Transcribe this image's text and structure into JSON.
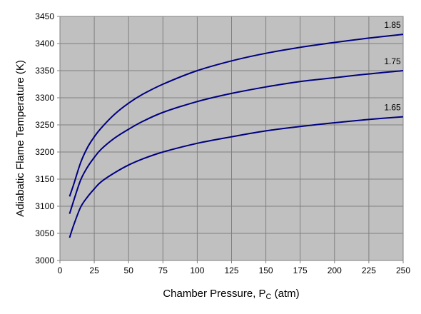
{
  "chart_data": {
    "type": "line",
    "title": "",
    "xlabel_main": "Chamber Pressure, P",
    "xlabel_sub": "C",
    "xlabel_unit": " (atm)",
    "ylabel": "Adiabatic Flame Temperature (K)",
    "xlim": [
      0,
      250
    ],
    "ylim": [
      3000,
      3450
    ],
    "x_ticks": [
      "0",
      "25",
      "50",
      "75",
      "100",
      "125",
      "150",
      "175",
      "200",
      "225",
      "250"
    ],
    "y_ticks": [
      "3000",
      "3050",
      "3100",
      "3150",
      "3200",
      "3250",
      "3300",
      "3350",
      "3400",
      "3450"
    ],
    "grid": true,
    "legend": "none",
    "plot_background": "#c0c0c0",
    "line_color": "#000080",
    "x": [
      7,
      10,
      15,
      20,
      25,
      30,
      40,
      50,
      60,
      75,
      100,
      125,
      150,
      175,
      200,
      225,
      250
    ],
    "series": [
      {
        "name": "1.85",
        "values": [
          3118,
          3140,
          3180,
          3208,
          3228,
          3244,
          3270,
          3290,
          3306,
          3325,
          3350,
          3368,
          3382,
          3393,
          3402,
          3410,
          3417
        ]
      },
      {
        "name": "1.75",
        "values": [
          3086,
          3110,
          3148,
          3172,
          3190,
          3205,
          3226,
          3242,
          3256,
          3273,
          3293,
          3308,
          3320,
          3330,
          3337,
          3344,
          3350
        ]
      },
      {
        "name": "1.65",
        "values": [
          3042,
          3065,
          3098,
          3117,
          3132,
          3145,
          3162,
          3176,
          3187,
          3200,
          3216,
          3228,
          3239,
          3247,
          3254,
          3260,
          3265
        ]
      }
    ]
  }
}
